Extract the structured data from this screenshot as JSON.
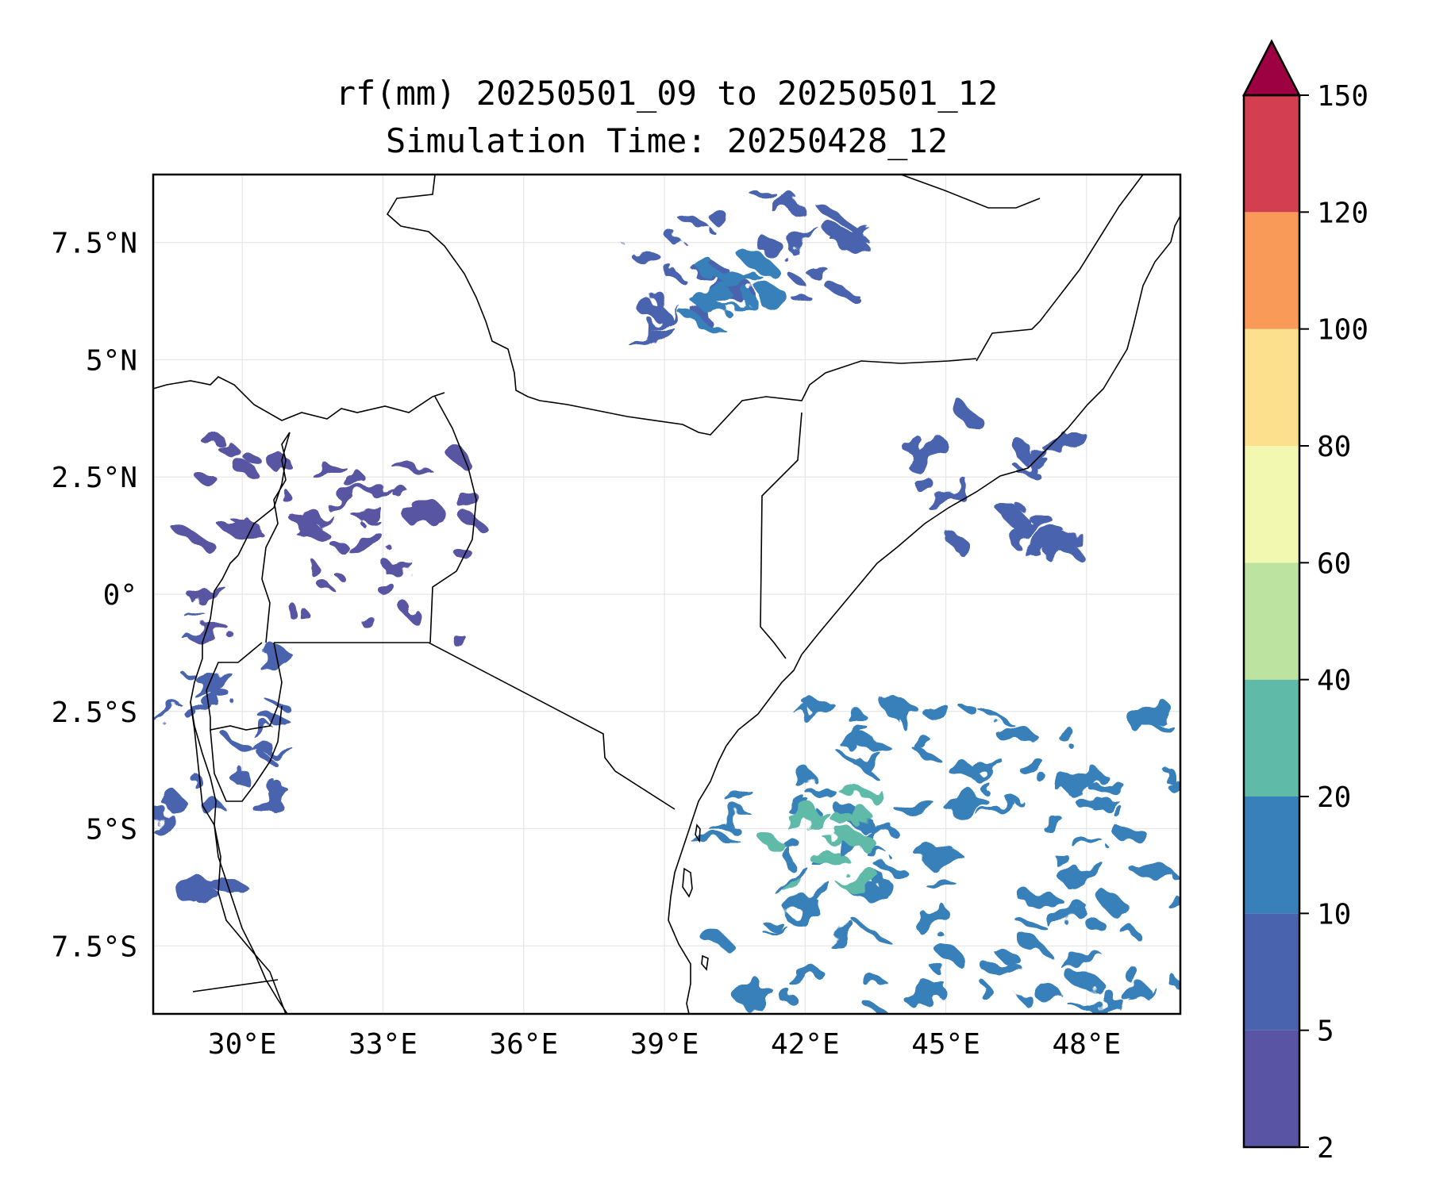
{
  "title": {
    "line1": "rf(mm) 20250501_09 to 20250501_12",
    "line2": "Simulation Time: 20250428_12"
  },
  "map": {
    "lon_range": [
      28.1,
      50.0
    ],
    "lat_range": [
      -8.95,
      8.95
    ],
    "lon_ticks": [
      {
        "value": 30,
        "label": "30°E"
      },
      {
        "value": 33,
        "label": "33°E"
      },
      {
        "value": 36,
        "label": "36°E"
      },
      {
        "value": 39,
        "label": "39°E"
      },
      {
        "value": 42,
        "label": "42°E"
      },
      {
        "value": 45,
        "label": "45°E"
      },
      {
        "value": 48,
        "label": "48°E"
      }
    ],
    "lat_ticks": [
      {
        "value": 7.5,
        "label": "7.5°N"
      },
      {
        "value": 5,
        "label": "5°N"
      },
      {
        "value": 2.5,
        "label": "2.5°N"
      },
      {
        "value": 0,
        "label": "0°"
      },
      {
        "value": -2.5,
        "label": "2.5°S"
      },
      {
        "value": -5,
        "label": "5°S"
      },
      {
        "value": -7.5,
        "label": "7.5°S"
      }
    ],
    "grid": true,
    "gridline_color": "#e6e6e6",
    "border_color": "#000000"
  },
  "colorbar": {
    "levels": [
      2,
      5,
      10,
      20,
      40,
      60,
      80,
      100,
      120,
      150
    ],
    "level_labels": [
      "2",
      "5",
      "10",
      "20",
      "40",
      "60",
      "80",
      "100",
      "120",
      "150"
    ],
    "colors": [
      "#5954a3",
      "#4a63ae",
      "#3880ba",
      "#60baa8",
      "#bde3a0",
      "#f3f8b0",
      "#fde08d",
      "#fa9a59",
      "#d33e50"
    ],
    "extend_color": "#9e0142",
    "extend": "max"
  },
  "rain_areas": [
    {
      "name": "ethiopia-highlands",
      "color_index": 1,
      "lon": [
        38.5,
        43.3
      ],
      "lat": [
        5.2,
        8.8
      ]
    },
    {
      "name": "ethiopia-highlands-core",
      "color_index": 2,
      "lon": [
        39.6,
        41.5
      ],
      "lat": [
        5.8,
        7.1
      ]
    },
    {
      "name": "lake-victoria-basin",
      "color_index": 0,
      "lon": [
        29.0,
        35.0
      ],
      "lat": [
        -1.0,
        3.3
      ]
    },
    {
      "name": "western-rift",
      "color_index": 1,
      "lon": [
        28.1,
        30.8
      ],
      "lat": [
        -6.5,
        0.0
      ]
    },
    {
      "name": "somali-coast",
      "color_index": 1,
      "lon": [
        44.2,
        47.8
      ],
      "lat": [
        0.9,
        3.8
      ]
    },
    {
      "name": "indian-ocean-band",
      "color_index": 2,
      "lon": [
        40.0,
        50.0
      ],
      "lat": [
        -8.9,
        -2.3
      ]
    },
    {
      "name": "indian-ocean-band-core",
      "color_index": 3,
      "lon": [
        41.2,
        43.5
      ],
      "lat": [
        -6.5,
        -4.0
      ]
    }
  ]
}
